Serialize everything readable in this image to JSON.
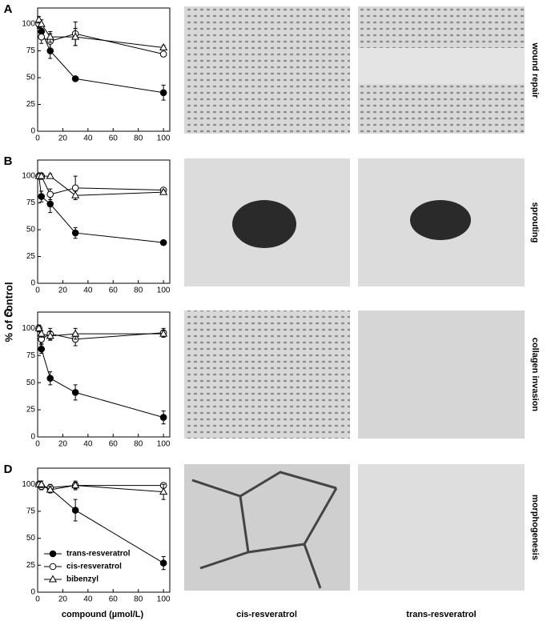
{
  "figure": {
    "y_label": "% of control",
    "x_label": "compound (µmol/L)",
    "columns": [
      "cis-resveratrol",
      "trans-resveratrol"
    ],
    "rows": [
      "wound repair",
      "sprouting",
      "collagen invasion",
      "morphogenesis"
    ]
  },
  "chart_data": [
    {
      "type": "line",
      "panel": "A",
      "x": [
        1,
        3,
        10,
        30,
        100
      ],
      "xlim": [
        0,
        105
      ],
      "ylim": [
        0,
        115
      ],
      "xticks": [
        0,
        20,
        40,
        60,
        80,
        100
      ],
      "yticks": [
        0,
        25,
        50,
        75,
        100
      ],
      "series": [
        {
          "marker": "filled-circle",
          "color": "#000000",
          "values": [
            100,
            93,
            75,
            49,
            36
          ],
          "errors": [
            3,
            5,
            7,
            2,
            7
          ]
        },
        {
          "marker": "open-circle",
          "color": "#000000",
          "values": [
            100,
            88,
            84,
            91,
            72
          ],
          "errors": [
            4,
            6,
            7,
            11,
            2
          ]
        },
        {
          "marker": "open-triangle",
          "color": "#000000",
          "values": [
            104,
            100,
            88,
            88,
            78
          ],
          "errors": [
            3,
            4,
            5,
            8,
            2
          ]
        }
      ]
    },
    {
      "type": "line",
      "panel": "B",
      "x": [
        1,
        3,
        10,
        30,
        100
      ],
      "xlim": [
        0,
        105
      ],
      "ylim": [
        0,
        115
      ],
      "xticks": [
        0,
        20,
        40,
        60,
        80,
        100
      ],
      "yticks": [
        0,
        25,
        50,
        75,
        100
      ],
      "series": [
        {
          "marker": "filled-circle",
          "color": "#000000",
          "values": [
            100,
            81,
            74,
            47,
            38
          ],
          "errors": [
            2,
            5,
            8,
            5,
            1
          ]
        },
        {
          "marker": "open-circle",
          "color": "#000000",
          "values": [
            100,
            100,
            83,
            89,
            87
          ],
          "errors": [
            2,
            3,
            5,
            11,
            2
          ]
        },
        {
          "marker": "open-triangle",
          "color": "#000000",
          "values": [
            100,
            100,
            100,
            82,
            85
          ],
          "errors": [
            2,
            2,
            2,
            4,
            2
          ]
        }
      ]
    },
    {
      "type": "line",
      "panel": "C",
      "x": [
        1,
        3,
        10,
        30,
        100
      ],
      "xlim": [
        0,
        105
      ],
      "ylim": [
        0,
        115
      ],
      "xticks": [
        0,
        20,
        40,
        60,
        80,
        100
      ],
      "yticks": [
        0,
        25,
        50,
        75,
        100
      ],
      "series": [
        {
          "marker": "filled-circle",
          "color": "#000000",
          "values": [
            100,
            81,
            54,
            41,
            18
          ],
          "errors": [
            2,
            4,
            6,
            7,
            6
          ]
        },
        {
          "marker": "open-circle",
          "color": "#000000",
          "values": [
            100,
            90,
            95,
            90,
            96
          ],
          "errors": [
            3,
            4,
            5,
            6,
            4
          ]
        },
        {
          "marker": "open-triangle",
          "color": "#000000",
          "values": [
            100,
            95,
            93,
            95,
            95
          ],
          "errors": [
            2,
            3,
            4,
            5,
            3
          ]
        }
      ]
    },
    {
      "type": "line",
      "panel": "D",
      "x": [
        1,
        3,
        10,
        30,
        100
      ],
      "xlim": [
        0,
        105
      ],
      "ylim": [
        0,
        115
      ],
      "xticks": [
        0,
        20,
        40,
        60,
        80,
        100
      ],
      "yticks": [
        0,
        25,
        50,
        75,
        100
      ],
      "legend": "lower left",
      "series": [
        {
          "name": "trans-resveratrol",
          "marker": "filled-circle",
          "color": "#000000",
          "values": [
            100,
            98,
            96,
            76,
            27
          ],
          "errors": [
            2,
            3,
            3,
            10,
            6
          ]
        },
        {
          "name": "cis-resveratrol",
          "marker": "open-circle",
          "color": "#000000",
          "values": [
            100,
            98,
            97,
            99,
            99
          ],
          "errors": [
            2,
            3,
            3,
            4,
            2
          ]
        },
        {
          "name": "bibenzyl",
          "marker": "open-triangle",
          "color": "#000000",
          "values": [
            100,
            100,
            95,
            99,
            93
          ],
          "errors": [
            2,
            3,
            3,
            3,
            7
          ]
        }
      ]
    }
  ]
}
